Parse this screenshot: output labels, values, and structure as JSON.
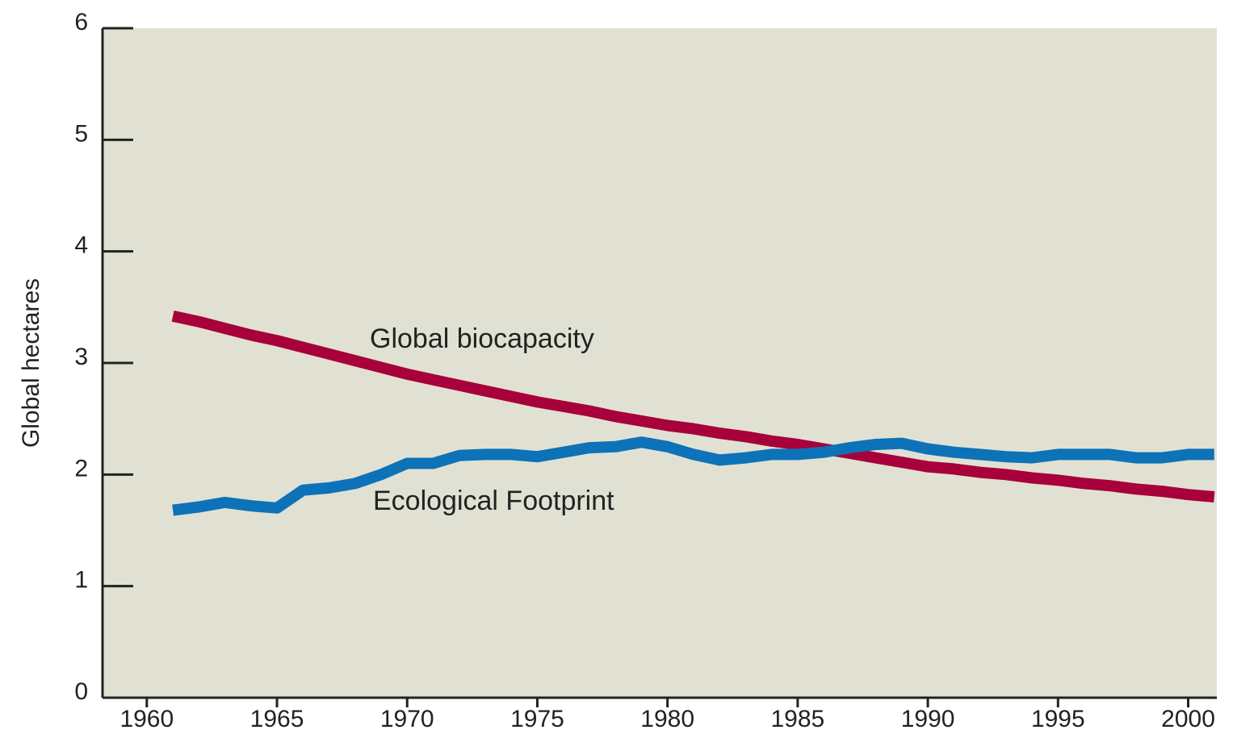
{
  "chart_data": {
    "type": "line",
    "y_label": "Global hectares",
    "x": [
      1961,
      1962,
      1963,
      1964,
      1965,
      1966,
      1967,
      1968,
      1969,
      1970,
      1971,
      1972,
      1973,
      1974,
      1975,
      1976,
      1977,
      1978,
      1979,
      1980,
      1981,
      1982,
      1983,
      1984,
      1985,
      1986,
      1987,
      1988,
      1989,
      1990,
      1991,
      1992,
      1993,
      1994,
      1995,
      1996,
      1997,
      1998,
      1999,
      2000,
      2001
    ],
    "series": [
      {
        "name": "Global biocapacity",
        "color": "#a8003a",
        "values": [
          3.42,
          3.37,
          3.31,
          3.25,
          3.2,
          3.14,
          3.08,
          3.02,
          2.96,
          2.9,
          2.85,
          2.8,
          2.75,
          2.7,
          2.65,
          2.61,
          2.57,
          2.52,
          2.48,
          2.44,
          2.41,
          2.37,
          2.34,
          2.3,
          2.27,
          2.23,
          2.19,
          2.15,
          2.11,
          2.07,
          2.05,
          2.02,
          2.0,
          1.97,
          1.95,
          1.92,
          1.9,
          1.87,
          1.85,
          1.82,
          1.8
        ]
      },
      {
        "name": "Ecological Footprint",
        "color": "#0d72b8",
        "values": [
          1.68,
          1.71,
          1.75,
          1.72,
          1.7,
          1.86,
          1.88,
          1.92,
          2.0,
          2.1,
          2.1,
          2.17,
          2.18,
          2.18,
          2.16,
          2.2,
          2.24,
          2.25,
          2.29,
          2.25,
          2.18,
          2.13,
          2.15,
          2.18,
          2.18,
          2.2,
          2.24,
          2.27,
          2.28,
          2.23,
          2.2,
          2.18,
          2.16,
          2.15,
          2.18,
          2.18,
          2.18,
          2.15,
          2.15,
          2.18,
          2.18
        ]
      }
    ],
    "xlim": [
      1958.3,
      2001.1
    ],
    "xticks": [
      1960,
      1965,
      1970,
      1975,
      1980,
      1985,
      1990,
      1995,
      2000
    ],
    "ylim": [
      0,
      6
    ],
    "yticks": [
      0,
      1,
      2,
      3,
      4,
      5,
      6
    ]
  }
}
